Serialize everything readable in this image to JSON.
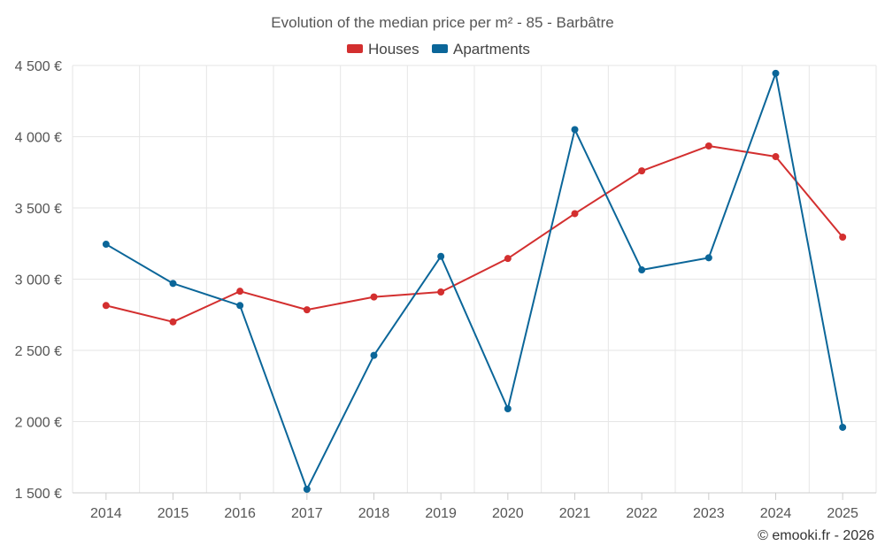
{
  "chart_data": {
    "type": "line",
    "title": "Evolution of the median price per m² - 85 - Barbâtre",
    "categories": [
      "2014",
      "2015",
      "2016",
      "2017",
      "2018",
      "2019",
      "2020",
      "2021",
      "2022",
      "2023",
      "2024",
      "2025"
    ],
    "series": [
      {
        "name": "Houses",
        "color": "#d32f2f",
        "values": [
          2815,
          2700,
          2915,
          2785,
          2875,
          2910,
          3145,
          3460,
          3760,
          3935,
          3860,
          3295
        ]
      },
      {
        "name": "Apartments",
        "color": "#0b6699",
        "values": [
          3245,
          2970,
          2815,
          1525,
          2465,
          3160,
          2090,
          4050,
          3065,
          3150,
          4445,
          1960
        ]
      }
    ],
    "ylim": [
      1500,
      4500
    ],
    "yticks": [
      1500,
      2000,
      2500,
      3000,
      3500,
      4000,
      4500
    ],
    "ytick_labels": [
      "1 500 €",
      "2 000 €",
      "2 500 €",
      "3 000 €",
      "3 500 €",
      "4 000 €",
      "4 500 €"
    ],
    "legend_position": "top-center",
    "grid": true,
    "credit": "© emooki.fr - 2026"
  }
}
